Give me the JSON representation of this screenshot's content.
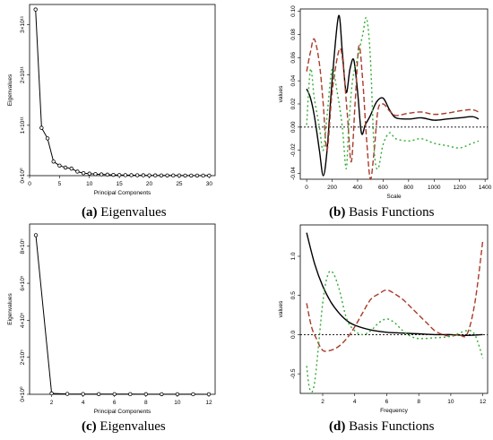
{
  "chart_data": [
    {
      "panel_label": "(a)",
      "caption": "Eigenvalues",
      "type": "line",
      "xlabel": "Principal Components",
      "ylabel": "Eigenvalues",
      "xlim": [
        0,
        31
      ],
      "ylim": [
        0,
        340000000000.0
      ],
      "xticks": [
        0,
        5,
        10,
        15,
        20,
        25,
        30
      ],
      "yticks": [
        {
          "v": 0,
          "t": "0×10⁰"
        },
        {
          "v": 100000000000.0,
          "t": "1×10¹¹"
        },
        {
          "v": 200000000000.0,
          "t": "2×10¹¹"
        },
        {
          "v": 300000000000.0,
          "t": "3×10¹¹"
        }
      ],
      "x": [
        1,
        2,
        3,
        4,
        5,
        6,
        7,
        8,
        9,
        10,
        11,
        12,
        13,
        14,
        15,
        16,
        17,
        18,
        19,
        20,
        21,
        22,
        23,
        24,
        25,
        26,
        27,
        28,
        29,
        30
      ],
      "values": [
        330000000000.0,
        95000000000.0,
        74000000000.0,
        28000000000.0,
        20000000000.0,
        16000000000.0,
        14000000000.0,
        8000000000.0,
        5000000000.0,
        4000000000.0,
        3000000000.0,
        2500000000.0,
        2000000000.0,
        1500000000.0,
        1200000000.0,
        1000000000.0,
        900000000.0,
        800000000.0,
        700000000.0,
        600000000.0,
        500000000.0,
        400000000.0,
        400000000.0,
        300000000.0,
        300000000.0,
        200000000.0,
        200000000.0,
        200000000.0,
        100000000.0,
        100000000.0
      ]
    },
    {
      "panel_label": "(b)",
      "caption": "Basis Functions",
      "type": "line",
      "xlabel": "Scale",
      "ylabel": "values",
      "xlim": [
        -50,
        1420
      ],
      "ylim": [
        -0.045,
        0.102
      ],
      "xticks": [
        0,
        200,
        400,
        600,
        800,
        1000,
        1200,
        1400
      ],
      "yticks": [
        {
          "v": -0.04,
          "t": "-0.04"
        },
        {
          "v": -0.02,
          "t": "-0.02"
        },
        {
          "v": 0,
          "t": "0.00"
        },
        {
          "v": 0.02,
          "t": "0.02"
        },
        {
          "v": 0.04,
          "t": "0.04"
        },
        {
          "v": 0.06,
          "t": "0.06"
        },
        {
          "v": 0.08,
          "t": "0.08"
        },
        {
          "v": 0.1,
          "t": "0.10"
        }
      ],
      "hline": 0,
      "series": [
        {
          "color": "#000000",
          "dash": "",
          "x": [
            0,
            30,
            60,
            100,
            130,
            160,
            200,
            250,
            280,
            310,
            340,
            370,
            400,
            430,
            460,
            500,
            550,
            600,
            650,
            700,
            800,
            900,
            1000,
            1100,
            1200,
            1300,
            1350
          ],
          "values": [
            0.033,
            0.025,
            0.01,
            -0.02,
            -0.042,
            -0.02,
            0.04,
            0.096,
            0.065,
            0.03,
            0.05,
            0.058,
            0.03,
            -0.005,
            0.002,
            0.01,
            0.022,
            0.025,
            0.015,
            0.008,
            0.007,
            0.008,
            0.006,
            0.007,
            0.008,
            0.009,
            0.007
          ]
        },
        {
          "color": "#a83b2a",
          "dash": "6,3",
          "x": [
            0,
            30,
            60,
            100,
            130,
            160,
            200,
            250,
            280,
            320,
            350,
            380,
            410,
            440,
            470,
            500,
            530,
            560,
            600,
            650,
            700,
            800,
            900,
            1000,
            1100,
            1200,
            1300,
            1350
          ],
          "values": [
            0.048,
            0.065,
            0.076,
            0.055,
            0.02,
            -0.02,
            0.03,
            0.065,
            0.06,
            0.01,
            -0.03,
            0.02,
            0.07,
            0.04,
            -0.01,
            -0.045,
            -0.02,
            0.015,
            0.02,
            0.014,
            0.01,
            0.012,
            0.013,
            0.011,
            0.012,
            0.014,
            0.015,
            0.013
          ]
        },
        {
          "color": "#33aa33",
          "dash": "2,3",
          "x": [
            0,
            30,
            60,
            100,
            130,
            160,
            200,
            240,
            280,
            310,
            330,
            360,
            400,
            440,
            470,
            500,
            530,
            560,
            600,
            650,
            700,
            800,
            900,
            1000,
            1100,
            1200,
            1300,
            1350
          ],
          "values": [
            0.002,
            0.05,
            0.025,
            0.0,
            -0.02,
            0.01,
            0.05,
            0.03,
            0.0,
            -0.036,
            0.0,
            0.04,
            0.06,
            0.08,
            0.094,
            0.06,
            -0.02,
            -0.036,
            -0.015,
            -0.005,
            -0.01,
            -0.012,
            -0.01,
            -0.014,
            -0.016,
            -0.018,
            -0.014,
            -0.012
          ]
        }
      ]
    },
    {
      "panel_label": "(c)",
      "caption": "Eigenvalues",
      "type": "line",
      "xlabel": "Principal Components",
      "ylabel": "Eigenvalues",
      "xlim": [
        0.6,
        12.4
      ],
      "ylim": [
        0,
        920000.0
      ],
      "xticks": [
        2,
        4,
        6,
        8,
        10,
        12
      ],
      "yticks": [
        {
          "v": 0,
          "t": "0×10⁰"
        },
        {
          "v": 200000.0,
          "t": "2×10⁵"
        },
        {
          "v": 400000.0,
          "t": "4×10⁵"
        },
        {
          "v": 600000.0,
          "t": "6×10⁵"
        },
        {
          "v": 800000.0,
          "t": "8×10⁵"
        }
      ],
      "x": [
        1,
        2,
        3,
        4,
        5,
        6,
        7,
        8,
        9,
        10,
        11,
        12
      ],
      "values": [
        860000.0,
        5000.0,
        2000.0,
        1500.0,
        1000.0,
        1000.0,
        800.0,
        600.0,
        500.0,
        400.0,
        300.0,
        200.0
      ]
    },
    {
      "panel_label": "(d)",
      "caption": "Basis Functions",
      "type": "line",
      "xlabel": "Frequency",
      "ylabel": "values",
      "xlim": [
        0.6,
        12.3
      ],
      "ylim": [
        -0.75,
        1.4
      ],
      "xticks": [
        2,
        4,
        6,
        8,
        10,
        12
      ],
      "yticks": [
        {
          "v": -0.5,
          "t": "-0.5"
        },
        {
          "v": 0,
          "t": "0.0"
        },
        {
          "v": 0.5,
          "t": "0.5"
        },
        {
          "v": 1,
          "t": "1.0"
        }
      ],
      "hline": 0,
      "series": [
        {
          "color": "#000000",
          "dash": "",
          "x": [
            1,
            1.5,
            2,
            2.5,
            3,
            3.5,
            4,
            5,
            6,
            7,
            8,
            9,
            10,
            11,
            12
          ],
          "values": [
            1.3,
            0.9,
            0.62,
            0.42,
            0.28,
            0.18,
            0.12,
            0.06,
            0.03,
            0.02,
            0.01,
            0.0,
            0.0,
            -0.01,
            0.0
          ]
        },
        {
          "color": "#a83b2a",
          "dash": "6,3",
          "x": [
            1,
            1.3,
            1.6,
            2,
            2.5,
            3,
            3.5,
            4,
            4.5,
            5,
            5.5,
            6,
            6.5,
            7,
            7.5,
            8,
            8.5,
            9,
            9.5,
            10,
            10.5,
            11,
            11.5,
            12
          ],
          "values": [
            0.4,
            0.1,
            -0.05,
            -0.2,
            -0.2,
            -0.15,
            -0.05,
            0.1,
            0.28,
            0.45,
            0.52,
            0.57,
            0.52,
            0.45,
            0.35,
            0.25,
            0.15,
            0.05,
            0.0,
            -0.02,
            0.0,
            0.0,
            0.4,
            1.2
          ]
        },
        {
          "color": "#33aa33",
          "dash": "2,3",
          "x": [
            1,
            1.2,
            1.5,
            2,
            2.3,
            2.6,
            3,
            3.5,
            4,
            4.5,
            5,
            5.5,
            6,
            6.5,
            7,
            7.5,
            8,
            9,
            10,
            11,
            11.5,
            12
          ],
          "values": [
            -0.4,
            -0.7,
            -0.6,
            0.4,
            0.75,
            0.8,
            0.6,
            0.2,
            0.05,
            0.0,
            0.05,
            0.15,
            0.2,
            0.15,
            0.05,
            -0.02,
            -0.05,
            -0.04,
            -0.02,
            0.05,
            0.0,
            -0.3
          ]
        }
      ]
    }
  ]
}
